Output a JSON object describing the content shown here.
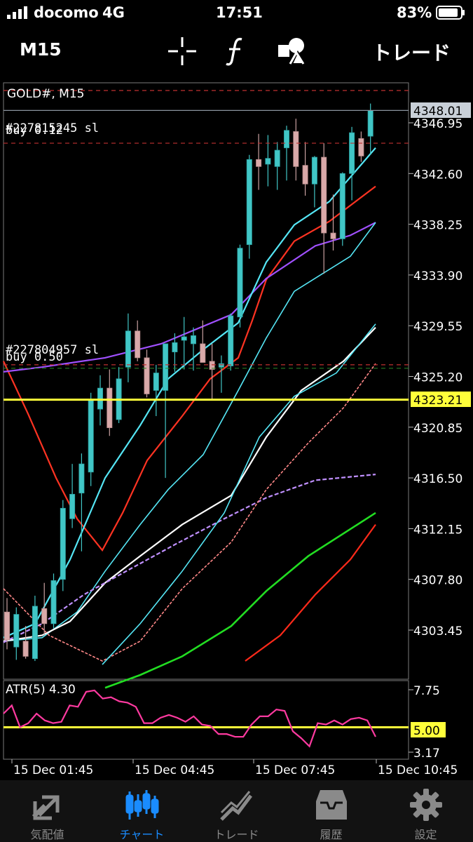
{
  "status_bar": {
    "carrier": "docomo",
    "network": "4G",
    "time": "17:51",
    "battery": "83%"
  },
  "toolbar": {
    "timeframe": "M15",
    "icons": [
      "crosshair-icon",
      "function-icon",
      "objects-icon"
    ],
    "trade_label": "トレード"
  },
  "chart": {
    "symbol_label": "GOLD#, M15",
    "current_price_label": "4348.01",
    "hline_price_label": "4323.21",
    "order_lines": [
      {
        "id_label": "#227815245 sl",
        "sub_label": "buy 0.12",
        "price": 4345.2
      },
      {
        "id_label": "#227804957 sl",
        "sub_label": "buy 0.50",
        "price": 4326.2
      }
    ],
    "atr_label": "ATR(5) 4.30",
    "atr_level_label": "5.00",
    "colors": {
      "up": "#41c6c6",
      "down": "#d9a9a9",
      "hline": "#ffff3a",
      "grid": "#3a3a3a"
    }
  },
  "chart_data": {
    "type": "candlestick",
    "symbol": "GOLD#",
    "timeframe": "M15",
    "y_ticks": [
      "4346.95",
      "4342.60",
      "4338.25",
      "4333.90",
      "4329.55",
      "4325.20",
      "4320.85",
      "4316.50",
      "4312.15",
      "4307.80",
      "4303.45"
    ],
    "ylim": [
      4300.4,
      4350.9
    ],
    "x_ticks": [
      "15 Dec 01:45",
      "15 Dec 04:45",
      "15 Dec 07:45",
      "15 Dec 10:45"
    ],
    "candles": [
      {
        "o": 4305.0,
        "h": 4306.2,
        "l": 4301.8,
        "c": 4302.6
      },
      {
        "o": 4302.0,
        "h": 4305.4,
        "l": 4300.9,
        "c": 4304.8
      },
      {
        "o": 4302.5,
        "h": 4303.8,
        "l": 4301.0,
        "c": 4301.2
      },
      {
        "o": 4301.0,
        "h": 4306.4,
        "l": 4300.8,
        "c": 4305.5
      },
      {
        "o": 4305.3,
        "h": 4307.5,
        "l": 4303.0,
        "c": 4304.0
      },
      {
        "o": 4304.0,
        "h": 4308.3,
        "l": 4303.6,
        "c": 4307.7
      },
      {
        "o": 4307.8,
        "h": 4314.6,
        "l": 4306.8,
        "c": 4313.9
      },
      {
        "o": 4313.0,
        "h": 4317.7,
        "l": 4312.2,
        "c": 4315.1
      },
      {
        "o": 4315.2,
        "h": 4318.6,
        "l": 4310.2,
        "c": 4317.7
      },
      {
        "o": 4317.0,
        "h": 4323.8,
        "l": 4315.8,
        "c": 4323.2
      },
      {
        "o": 4322.4,
        "h": 4325.3,
        "l": 4321.0,
        "c": 4324.2
      },
      {
        "o": 4324.2,
        "h": 4325.8,
        "l": 4320.1,
        "c": 4320.8
      },
      {
        "o": 4321.5,
        "h": 4326.0,
        "l": 4321.2,
        "c": 4325.0
      },
      {
        "o": 4326.0,
        "h": 4330.6,
        "l": 4324.7,
        "c": 4329.1
      },
      {
        "o": 4329.1,
        "h": 4330.0,
        "l": 4326.5,
        "c": 4326.8
      },
      {
        "o": 4326.8,
        "h": 4327.5,
        "l": 4323.4,
        "c": 4323.7
      },
      {
        "o": 4324.0,
        "h": 4326.2,
        "l": 4321.8,
        "c": 4325.5
      },
      {
        "o": 4324.0,
        "h": 4328.0,
        "l": 4316.5,
        "c": 4328.0
      },
      {
        "o": 4327.3,
        "h": 4328.9,
        "l": 4325.6,
        "c": 4328.1
      },
      {
        "o": 4328.3,
        "h": 4330.3,
        "l": 4325.8,
        "c": 4328.6
      },
      {
        "o": 4328.0,
        "h": 4329.4,
        "l": 4325.7,
        "c": 4328.7
      },
      {
        "o": 4328.0,
        "h": 4330.0,
        "l": 4326.4,
        "c": 4326.4
      },
      {
        "o": 4326.5,
        "h": 4328.0,
        "l": 4323.2,
        "c": 4325.8
      },
      {
        "o": 4326.0,
        "h": 4327.0,
        "l": 4323.8,
        "c": 4326.3
      },
      {
        "o": 4326.1,
        "h": 4330.6,
        "l": 4325.7,
        "c": 4330.4
      },
      {
        "o": 4330.3,
        "h": 4336.5,
        "l": 4329.4,
        "c": 4336.2
      },
      {
        "o": 4336.5,
        "h": 4344.2,
        "l": 4335.3,
        "c": 4343.8
      },
      {
        "o": 4343.8,
        "h": 4346.0,
        "l": 4341.2,
        "c": 4343.2
      },
      {
        "o": 4343.4,
        "h": 4345.9,
        "l": 4341.5,
        "c": 4343.9
      },
      {
        "o": 4343.2,
        "h": 4345.3,
        "l": 4341.2,
        "c": 4344.6
      },
      {
        "o": 4344.8,
        "h": 4346.7,
        "l": 4342.0,
        "c": 4346.3
      },
      {
        "o": 4346.2,
        "h": 4347.3,
        "l": 4342.0,
        "c": 4343.2
      },
      {
        "o": 4343.3,
        "h": 4345.3,
        "l": 4340.7,
        "c": 4341.7
      },
      {
        "o": 4341.7,
        "h": 4344.1,
        "l": 4339.7,
        "c": 4344.0
      },
      {
        "o": 4344.0,
        "h": 4345.2,
        "l": 4334.0,
        "c": 4337.5
      },
      {
        "o": 4337.5,
        "h": 4340.8,
        "l": 4336.0,
        "c": 4337.0
      },
      {
        "o": 4337.0,
        "h": 4342.7,
        "l": 4336.4,
        "c": 4342.6
      },
      {
        "o": 4342.6,
        "h": 4346.6,
        "l": 4340.3,
        "c": 4346.1
      },
      {
        "o": 4345.6,
        "h": 4346.2,
        "l": 4343.6,
        "c": 4344.1
      },
      {
        "o": 4345.8,
        "h": 4348.6,
        "l": 4344.2,
        "c": 4348.0
      }
    ],
    "horizontal_line": 4323.21,
    "current_price": 4348.01,
    "atr": {
      "label": "ATR(5)",
      "value": 4.3,
      "level": 5.0,
      "y_ticks": [
        "7.75",
        "3.17"
      ],
      "ylim": [
        3.17,
        7.75
      ]
    }
  },
  "tabs": [
    {
      "label": "気配値",
      "icon": "quotes-icon"
    },
    {
      "label": "チャート",
      "icon": "chart-icon"
    },
    {
      "label": "トレード",
      "icon": "trade-icon"
    },
    {
      "label": "履歴",
      "icon": "history-icon"
    },
    {
      "label": "設定",
      "icon": "settings-icon"
    }
  ]
}
